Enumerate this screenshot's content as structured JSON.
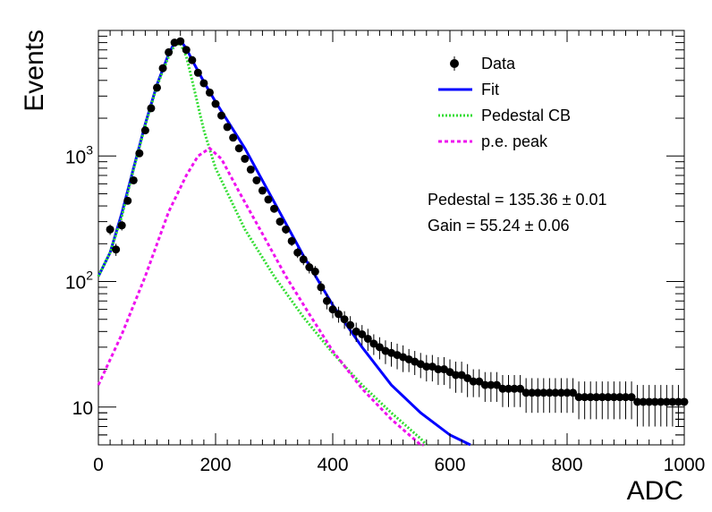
{
  "chart_data": {
    "type": "scatter",
    "xlabel": "ADC",
    "ylabel": "Events",
    "xlim": [
      0,
      1000
    ],
    "ylim": [
      5,
      10000
    ],
    "y_scale": "log",
    "grid": false,
    "legend_position": "top-right",
    "x_ticks": [
      "0",
      "200",
      "400",
      "600",
      "800",
      "1000"
    ],
    "y_ticks": [
      {
        "value": 10,
        "label": "10",
        "sup": ""
      },
      {
        "value": 100,
        "label": "10",
        "sup": "2"
      },
      {
        "value": 1000,
        "label": "10",
        "sup": "3"
      }
    ],
    "legend": [
      {
        "label": "Data",
        "style": "marker",
        "color": "#000000"
      },
      {
        "label": "Fit",
        "style": "solid",
        "color": "#0000ff"
      },
      {
        "label": "Pedestal CB",
        "style": "dotted",
        "color": "#33dd33"
      },
      {
        "label": "p.e. peak",
        "style": "dashed",
        "color": "#ee11ee"
      }
    ],
    "stats": [
      "Pedestal = 135.36 ± 0.01",
      "Gain = 55.24 ± 0.06"
    ],
    "series": [
      {
        "name": "Data",
        "kind": "points_with_errors",
        "color": "#000000",
        "x": [
          20,
          30,
          40,
          50,
          60,
          70,
          80,
          90,
          100,
          110,
          120,
          130,
          140,
          150,
          160,
          170,
          180,
          190,
          200,
          210,
          220,
          230,
          240,
          250,
          260,
          270,
          280,
          290,
          300,
          310,
          320,
          330,
          340,
          350,
          360,
          370,
          380,
          390,
          400,
          410,
          420,
          430,
          440,
          450,
          460,
          470,
          480,
          490,
          500,
          510,
          520,
          530,
          540,
          550,
          560,
          570,
          580,
          590,
          600,
          610,
          620,
          630,
          640,
          650,
          660,
          670,
          680,
          690,
          700,
          710,
          720,
          730,
          740,
          750,
          760,
          770,
          780,
          790,
          800,
          810,
          820,
          830,
          840,
          850,
          860,
          870,
          880,
          890,
          900,
          910,
          920,
          930,
          940,
          950,
          960,
          970,
          980,
          990,
          1000
        ],
        "y": [
          260,
          180,
          280,
          440,
          640,
          1050,
          1600,
          2400,
          3500,
          5000,
          6700,
          8000,
          8200,
          7000,
          5800,
          4600,
          3800,
          3200,
          2600,
          2100,
          1700,
          1400,
          1150,
          950,
          780,
          640,
          530,
          450,
          380,
          300,
          260,
          210,
          170,
          150,
          130,
          120,
          90,
          70,
          60,
          55,
          50,
          45,
          40,
          38,
          35,
          32,
          30,
          28,
          27,
          26,
          25,
          24,
          23,
          22,
          21,
          21,
          20,
          20,
          19,
          18,
          18,
          17,
          16,
          16,
          15,
          15,
          15,
          14,
          14,
          14,
          14,
          13,
          13,
          13,
          13,
          13,
          13,
          13,
          13,
          13,
          12,
          12,
          12,
          12,
          12,
          12,
          12,
          12,
          12,
          12,
          11,
          11,
          11,
          11,
          11,
          11,
          11,
          11,
          11
        ],
        "err": [
          25,
          20,
          25,
          30,
          35,
          45,
          55,
          70,
          90,
          110,
          120,
          130,
          130,
          120,
          110,
          100,
          90,
          80,
          70,
          60,
          55,
          50,
          45,
          40,
          36,
          32,
          28,
          26,
          24,
          22,
          20,
          18,
          16,
          15,
          14,
          13,
          11,
          10,
          9,
          8,
          8,
          8,
          7,
          7,
          7,
          6,
          6,
          6,
          6,
          6,
          6,
          5,
          5,
          5,
          5,
          5,
          5,
          5,
          5,
          5,
          5,
          5,
          4,
          4,
          4,
          4,
          4,
          4,
          4,
          4,
          4,
          4,
          4,
          4,
          4,
          4,
          4,
          4,
          4,
          4,
          4,
          4,
          4,
          4,
          4,
          4,
          4,
          4,
          4,
          4,
          4,
          4,
          4,
          4,
          4,
          4,
          4,
          4,
          4
        ]
      },
      {
        "name": "Fit",
        "kind": "line",
        "style": "solid",
        "color": "#0000ff",
        "x": [
          0,
          20,
          40,
          60,
          80,
          100,
          120,
          130,
          140,
          150,
          160,
          180,
          200,
          250,
          300,
          350,
          400,
          450,
          500,
          550,
          600,
          635
        ],
        "y": [
          110,
          170,
          350,
          800,
          1800,
          3700,
          6500,
          8000,
          8300,
          7200,
          5800,
          3900,
          2700,
          1150,
          430,
          160,
          65,
          30,
          15,
          9,
          6,
          5
        ]
      },
      {
        "name": "Pedestal CB",
        "kind": "line",
        "style": "dotted",
        "color": "#33dd33",
        "x": [
          0,
          20,
          40,
          60,
          80,
          100,
          120,
          130,
          140,
          150,
          160,
          180,
          200,
          250,
          300,
          350,
          400,
          450,
          500,
          550,
          560
        ],
        "y": [
          110,
          170,
          330,
          780,
          1750,
          3600,
          6200,
          7600,
          7900,
          6200,
          4000,
          1600,
          800,
          260,
          110,
          52,
          27,
          15,
          9,
          5.6,
          5
        ]
      },
      {
        "name": "p.e. peak",
        "kind": "line",
        "style": "dashed",
        "color": "#ee11ee",
        "x": [
          0,
          40,
          80,
          120,
          150,
          170,
          190,
          210,
          240,
          280,
          320,
          360,
          400,
          450,
          500,
          550,
          555
        ],
        "y": [
          15,
          38,
          110,
          360,
          700,
          1000,
          1150,
          950,
          520,
          240,
          110,
          55,
          28,
          14,
          8,
          5,
          5
        ]
      }
    ]
  }
}
